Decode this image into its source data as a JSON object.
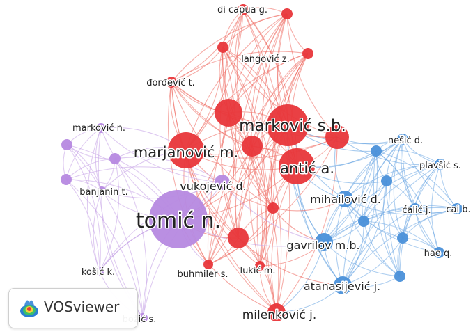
{
  "branding": {
    "name": "VOSviewer"
  },
  "clusters": {
    "red": {
      "node": "#e8363a",
      "edge": "#ef6b63"
    },
    "blue": {
      "node": "#4a90d9",
      "edge": "#6ea8e3"
    },
    "purple": {
      "node": "#b689e0",
      "edge": "#c4a1e6"
    }
  },
  "nodes": [
    {
      "id": "dicapua",
      "label": "di capua g.",
      "cluster": "red",
      "weight": 2
    },
    {
      "id": "langovic",
      "label": "langović z.",
      "cluster": "red",
      "weight": 2
    },
    {
      "id": "djordjevic",
      "label": "đorđević t.",
      "cluster": "red",
      "weight": 2
    },
    {
      "id": "markovicsb",
      "label": "marković s.b.",
      "cluster": "red",
      "weight": 10
    },
    {
      "id": "marjanovic",
      "label": "marjanović m.",
      "cluster": "red",
      "weight": 8
    },
    {
      "id": "antic",
      "label": "antić a.",
      "cluster": "red",
      "weight": 8
    },
    {
      "id": "buhmiler",
      "label": "buhmiler s.",
      "cluster": "red",
      "weight": 2
    },
    {
      "id": "lukic",
      "label": "lukić m.",
      "cluster": "red",
      "weight": 2
    },
    {
      "id": "milenkovic",
      "label": "milenković j.",
      "cluster": "red",
      "weight": 4
    },
    {
      "id": "markovicn",
      "label": "marković n.",
      "cluster": "purple",
      "weight": 2
    },
    {
      "id": "banjanin",
      "label": "banjanin t.",
      "cluster": "purple",
      "weight": 2
    },
    {
      "id": "vukojevic",
      "label": "vukojević d.",
      "cluster": "purple",
      "weight": 3
    },
    {
      "id": "tomic",
      "label": "tomić n.",
      "cluster": "purple",
      "weight": 12
    },
    {
      "id": "kosic",
      "label": "košić k.",
      "cluster": "purple",
      "weight": 2
    },
    {
      "id": "bozic",
      "label": "božić s.",
      "cluster": "purple",
      "weight": 2
    },
    {
      "id": "nesic",
      "label": "nešić d.",
      "cluster": "blue",
      "weight": 2
    },
    {
      "id": "plavsic",
      "label": "plavšić s.",
      "cluster": "blue",
      "weight": 2
    },
    {
      "id": "mihailovic",
      "label": "mihailović d.",
      "cluster": "blue",
      "weight": 3
    },
    {
      "id": "calic",
      "label": "ćalić j.",
      "cluster": "blue",
      "weight": 2
    },
    {
      "id": "caib",
      "label": "cai b.",
      "cluster": "blue",
      "weight": 2
    },
    {
      "id": "gavrilov",
      "label": "gavrilov m.b.",
      "cluster": "blue",
      "weight": 4
    },
    {
      "id": "haoq",
      "label": "hao q.",
      "cluster": "blue",
      "weight": 2
    },
    {
      "id": "atanasijevic",
      "label": "atanasijević j.",
      "cluster": "blue",
      "weight": 4
    }
  ]
}
